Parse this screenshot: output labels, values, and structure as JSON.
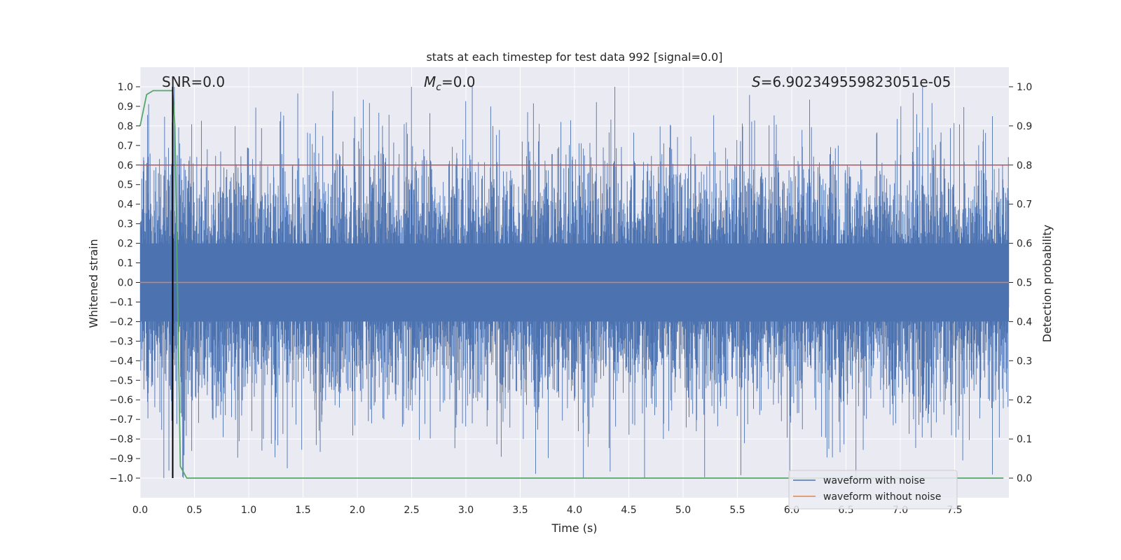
{
  "chart_data": {
    "type": "line",
    "title": "stats at each timestep for test data 992 [signal=0.0]",
    "xlabel": "Time (s)",
    "ylabel": "Whitened strain",
    "ylabel_right": "Detection probability",
    "xlim": [
      0.0,
      8.0
    ],
    "ylim": [
      -1.1,
      1.1
    ],
    "ylim_right": [
      -0.05,
      1.05
    ],
    "x_ticks": [
      "0.0",
      "0.5",
      "1.0",
      "1.5",
      "2.0",
      "2.5",
      "3.0",
      "3.5",
      "4.0",
      "4.5",
      "5.0",
      "5.5",
      "6.0",
      "6.5",
      "7.0",
      "7.5"
    ],
    "y_ticks": [
      "1.0",
      "0.9",
      "0.8",
      "0.7",
      "0.6",
      "0.5",
      "0.4",
      "0.3",
      "0.2",
      "0.1",
      "0.0",
      "−0.1",
      "−0.2",
      "−0.3",
      "−0.4",
      "−0.5",
      "−0.6",
      "−0.7",
      "−0.8",
      "−0.9",
      "−1.0"
    ],
    "y_ticks_right": [
      "1.0",
      "0.9",
      "0.8",
      "0.7",
      "0.6",
      "0.5",
      "0.4",
      "0.3",
      "0.2",
      "0.1",
      "0.0"
    ],
    "annotations": {
      "snr": "SNR=0.0",
      "mc_symbol": "M",
      "mc_sub": "c",
      "mc_value": "=0.0",
      "s_symbol": "S",
      "s_value": "=6.902349559823051e-05"
    },
    "series": [
      {
        "name": "waveform with noise",
        "color": "#4c72b0",
        "kind": "noise",
        "amplitude_rms": 0.3,
        "range": [
          -1.0,
          1.0
        ]
      },
      {
        "name": "waveform without noise",
        "color": "#dd8452",
        "constant": 0.0
      }
    ],
    "threshold": {
      "value": 0.8,
      "axis": "right",
      "color": "#c44e52"
    },
    "marker_time": 0.3,
    "marker_color": "#000000",
    "detection_probability": {
      "color": "#55a868",
      "x": [
        0.0,
        0.06,
        0.12,
        0.2,
        0.28,
        0.3,
        0.32,
        0.37,
        0.43,
        1.0,
        2.0,
        3.0,
        4.0,
        5.0,
        6.0,
        7.0,
        7.95
      ],
      "y": [
        0.9,
        0.98,
        0.99,
        0.99,
        0.99,
        0.99,
        0.9,
        0.03,
        0.0,
        0.0,
        0.0,
        0.0,
        0.0,
        0.0,
        0.0,
        0.0,
        0.0
      ]
    },
    "legend_placement": "bottom-right",
    "grid": true
  }
}
